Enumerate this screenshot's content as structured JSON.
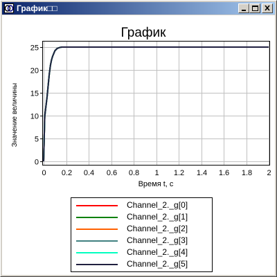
{
  "window": {
    "title": "График□□",
    "controls": {
      "minimize": "minimize",
      "maximize": "maximize",
      "close": "close"
    }
  },
  "colors": {
    "titlebar_start": "#0a246a",
    "titlebar_end": "#a6caf0",
    "grid": "#c0c0c0"
  },
  "chart_data": {
    "type": "line",
    "title": "График",
    "xlabel": "Время t, с",
    "ylabel": "Значение величины",
    "xlim": [
      0,
      2
    ],
    "ylim": [
      -1,
      26
    ],
    "grid": true,
    "legend_placement": "bottom",
    "xticks": [
      "0",
      "0.2",
      "0.4",
      "0.6",
      "0.8",
      "1",
      "1.2",
      "1.4",
      "1.6",
      "1.8",
      "2"
    ],
    "yticks": [
      "0",
      "5",
      "10",
      "15",
      "20",
      "25"
    ],
    "x": [
      0,
      0.01,
      0.02,
      0.03,
      0.04,
      0.05,
      0.06,
      0.07,
      0.08,
      0.1,
      0.12,
      0.14,
      0.16,
      0.18,
      0.2,
      0.25,
      0.3,
      0.5,
      1.0,
      1.5,
      2.0
    ],
    "series": [
      {
        "name": "Channel_2._g[0]",
        "color": "#ff0000",
        "values": [
          0,
          9.8,
          12,
          14,
          16.5,
          19,
          21,
          22.2,
          23,
          24.2,
          24.7,
          24.9,
          25,
          25,
          25,
          25,
          25,
          25,
          25,
          25,
          25
        ]
      },
      {
        "name": "Channel_2._g[1]",
        "color": "#008000",
        "values": [
          0,
          9.8,
          12,
          14,
          16.5,
          19,
          21,
          22.2,
          23,
          24.2,
          24.7,
          24.9,
          25,
          25,
          25,
          25,
          25,
          25,
          25,
          25,
          25
        ]
      },
      {
        "name": "Channel_2._g[2]",
        "color": "#ff6000",
        "values": [
          0,
          9.8,
          12,
          14,
          16.5,
          19,
          21,
          22.2,
          23,
          24.2,
          24.7,
          24.9,
          25,
          25,
          25,
          25,
          25,
          25,
          25,
          25,
          25
        ]
      },
      {
        "name": "Channel_2._g[3]",
        "color": "#408080",
        "values": [
          0,
          9.8,
          12,
          14,
          16.5,
          19,
          21,
          22.2,
          23,
          24.2,
          24.7,
          24.9,
          25,
          25,
          25,
          25,
          25,
          25,
          25,
          25,
          25
        ]
      },
      {
        "name": "Channel_2._g[4]",
        "color": "#00ffc0",
        "values": [
          0,
          9.8,
          12,
          14,
          16.5,
          19,
          21,
          22.2,
          23,
          24.2,
          24.7,
          24.9,
          25,
          25,
          25,
          25,
          25,
          25,
          25,
          25,
          25
        ]
      },
      {
        "name": "Channel_2._g[5]",
        "color": "#202040",
        "values": [
          0,
          9.8,
          12,
          14,
          16.5,
          19,
          21,
          22.2,
          23,
          24.2,
          24.7,
          24.9,
          25,
          25,
          25,
          25,
          25,
          25,
          25,
          25,
          25
        ]
      }
    ]
  }
}
